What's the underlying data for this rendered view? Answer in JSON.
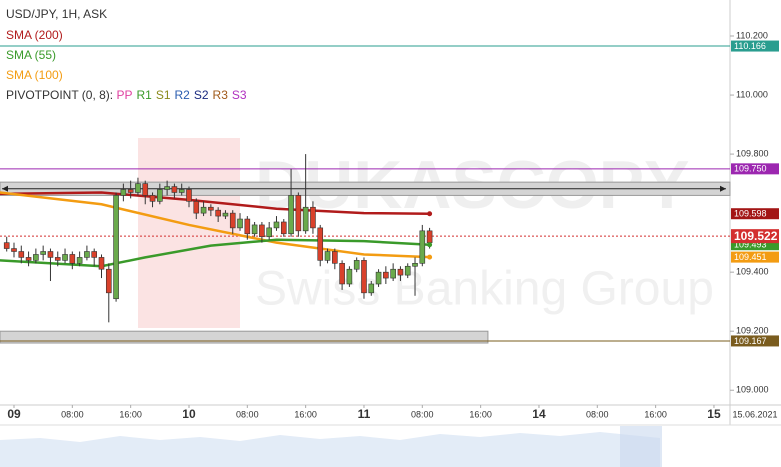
{
  "chart_data": {
    "type": "candlestick",
    "title": "USD/JPY, 1H, ASK",
    "legend": [
      {
        "name": "SMA (200)",
        "color": "#b11b1b"
      },
      {
        "name": "SMA (55)",
        "color": "#3a9a2a"
      },
      {
        "name": "SMA (100)",
        "color": "#f39c12"
      }
    ],
    "pivot_title": "PIVOTPOINT (0, 8): ",
    "pivot_items": [
      {
        "name": "PP",
        "color": "#e040a0"
      },
      {
        "name": "R1",
        "color": "#3a9a2a"
      },
      {
        "name": "S1",
        "color": "#8a8a1a"
      },
      {
        "name": "R2",
        "color": "#2a5db0"
      },
      {
        "name": "S2",
        "color": "#1a2a80"
      },
      {
        "name": "R3",
        "color": "#a05a1a"
      },
      {
        "name": "S3",
        "color": "#b030c0"
      }
    ],
    "watermark": [
      "DUKASCOPY",
      "Swiss Banking Group"
    ],
    "date_label": "15.06.2021",
    "up_color": "#6aaa4c",
    "down_color": "#d9412b",
    "x": [
      -1,
      0,
      1,
      2,
      3,
      4,
      5,
      6,
      7,
      8,
      9,
      10,
      11,
      12,
      13,
      14,
      15,
      16,
      17,
      18,
      19,
      20,
      21,
      22,
      23,
      24,
      25,
      26,
      27,
      28,
      29,
      30,
      31,
      32,
      33,
      34,
      35,
      36,
      37,
      38,
      39,
      40,
      41,
      42,
      43,
      44,
      45,
      46,
      47,
      48,
      49,
      50,
      51,
      52,
      53,
      54,
      55,
      56,
      57
    ],
    "open": [
      109.5,
      109.48,
      109.47,
      109.45,
      109.44,
      109.46,
      109.47,
      109.45,
      109.44,
      109.46,
      109.43,
      109.45,
      109.47,
      109.45,
      109.41,
      109.31,
      109.66,
      109.68,
      109.67,
      109.7,
      109.66,
      109.64,
      109.68,
      109.69,
      109.67,
      109.68,
      109.64,
      109.6,
      109.62,
      109.61,
      109.59,
      109.6,
      109.55,
      109.58,
      109.53,
      109.56,
      109.52,
      109.55,
      109.57,
      109.53,
      109.66,
      109.54,
      109.62,
      109.55,
      109.44,
      109.47,
      109.43,
      109.36,
      109.41,
      109.44,
      109.33,
      109.36,
      109.4,
      109.38,
      109.41,
      109.39,
      109.42,
      109.43,
      109.54
    ],
    "high": [
      109.52,
      109.5,
      109.49,
      109.47,
      109.48,
      109.49,
      109.48,
      109.47,
      109.48,
      109.47,
      109.47,
      109.49,
      109.48,
      109.46,
      109.43,
      109.67,
      109.7,
      109.71,
      109.72,
      109.71,
      109.67,
      109.7,
      109.71,
      109.7,
      109.7,
      109.69,
      109.65,
      109.64,
      109.63,
      109.62,
      109.61,
      109.61,
      109.6,
      109.59,
      109.57,
      109.57,
      109.57,
      109.59,
      109.58,
      109.75,
      109.67,
      109.8,
      109.64,
      109.56,
      109.48,
      109.48,
      109.44,
      109.42,
      109.45,
      109.45,
      109.37,
      109.41,
      109.42,
      109.43,
      109.42,
      109.43,
      109.45,
      109.56,
      109.55
    ],
    "low": [
      109.47,
      109.45,
      109.43,
      109.42,
      109.43,
      109.44,
      109.37,
      109.42,
      109.43,
      109.41,
      109.42,
      109.44,
      109.42,
      109.38,
      109.23,
      109.3,
      109.64,
      109.65,
      109.66,
      109.63,
      109.62,
      109.63,
      109.66,
      109.65,
      109.66,
      109.62,
      109.58,
      109.59,
      109.59,
      109.57,
      109.58,
      109.53,
      109.54,
      109.51,
      109.52,
      109.5,
      109.51,
      109.54,
      109.52,
      109.52,
      109.52,
      109.53,
      109.53,
      109.42,
      109.43,
      109.41,
      109.34,
      109.35,
      109.4,
      109.31,
      109.32,
      109.35,
      109.36,
      109.37,
      109.37,
      109.38,
      109.32,
      109.42,
      109.48
    ],
    "close": [
      109.48,
      109.47,
      109.45,
      109.44,
      109.46,
      109.47,
      109.45,
      109.44,
      109.46,
      109.43,
      109.45,
      109.47,
      109.45,
      109.41,
      109.33,
      109.66,
      109.68,
      109.67,
      109.7,
      109.66,
      109.64,
      109.68,
      109.69,
      109.67,
      109.68,
      109.64,
      109.6,
      109.62,
      109.61,
      109.59,
      109.6,
      109.55,
      109.58,
      109.53,
      109.56,
      109.52,
      109.55,
      109.57,
      109.53,
      109.66,
      109.54,
      109.62,
      109.55,
      109.44,
      109.47,
      109.43,
      109.36,
      109.41,
      109.44,
      109.33,
      109.36,
      109.4,
      109.38,
      109.41,
      109.39,
      109.42,
      109.43,
      109.54,
      109.5
    ],
    "series": [
      {
        "name": "SMA (200)",
        "color": "#b11b1b",
        "x": [
          -2,
          12,
          24,
          36,
          48,
          57
        ],
        "values": [
          109.665,
          109.67,
          109.645,
          109.615,
          109.6,
          109.598
        ]
      },
      {
        "name": "SMA (100)",
        "color": "#f39c12",
        "x": [
          -2,
          12,
          24,
          36,
          48,
          57
        ],
        "values": [
          109.67,
          109.63,
          109.56,
          109.5,
          109.46,
          109.451
        ]
      },
      {
        "name": "SMA (55)",
        "color": "#3a9a2a",
        "x": [
          -2,
          12,
          18,
          27,
          36,
          48,
          57
        ],
        "values": [
          109.44,
          109.42,
          109.45,
          109.49,
          109.51,
          109.505,
          109.493
        ]
      }
    ],
    "bands": [
      {
        "lim": [
          109.66,
          109.705
        ],
        "xlim": [
          -1.92,
          98.2
        ],
        "arrows": true
      },
      {
        "lim": [
          109.16,
          109.2
        ],
        "xlim": [
          -1.92,
          65
        ]
      }
    ],
    "levels": [
      {
        "value": 110.166,
        "label": "110.166",
        "color": "#2a9d8f",
        "style": "solid"
      },
      {
        "value": 109.75,
        "label": "109.750",
        "color": "#9c27b0",
        "style": "solid"
      },
      {
        "value": 109.598,
        "label": "109.598",
        "color": "#a31515",
        "style": "none"
      },
      {
        "value": 109.493,
        "label": "109.493",
        "color": "#3a9a2a",
        "style": "none"
      },
      {
        "value": 109.451,
        "label": "109.451",
        "color": "#f39c12",
        "style": "none"
      },
      {
        "value": 109.167,
        "label": "109.167",
        "color": "#7a5c1e",
        "style": "solid"
      },
      {
        "value": 109.522,
        "label": "109.522",
        "color": "#d32f2f",
        "style": "dashed"
      }
    ],
    "xlim": [
      -1.92,
      98.2
    ],
    "ylim": [
      108.95,
      110.322
    ],
    "xticks": [
      {
        "value": 0,
        "label": "09"
      },
      {
        "value": 8,
        "label": "08:00"
      },
      {
        "value": 16,
        "label": "16:00"
      },
      {
        "value": 24,
        "label": "10"
      },
      {
        "value": 32,
        "label": "08:00"
      },
      {
        "value": 40,
        "label": "16:00"
      },
      {
        "value": 48,
        "label": "11"
      },
      {
        "value": 56,
        "label": "08:00"
      },
      {
        "value": 64,
        "label": "16:00"
      },
      {
        "value": 72,
        "label": "14"
      },
      {
        "value": 80,
        "label": "08:00"
      },
      {
        "value": 88,
        "label": "16:00"
      },
      {
        "value": 96,
        "label": "15"
      }
    ],
    "yticks": [
      {
        "value": 110.2,
        "label": "110.200"
      },
      {
        "value": 110.0,
        "label": "110.000"
      },
      {
        "value": 109.8,
        "label": "109.800"
      },
      {
        "value": 109.4,
        "label": "109.400"
      },
      {
        "value": 109.2,
        "label": "109.200"
      },
      {
        "value": 109.0,
        "label": "109.000"
      }
    ]
  }
}
